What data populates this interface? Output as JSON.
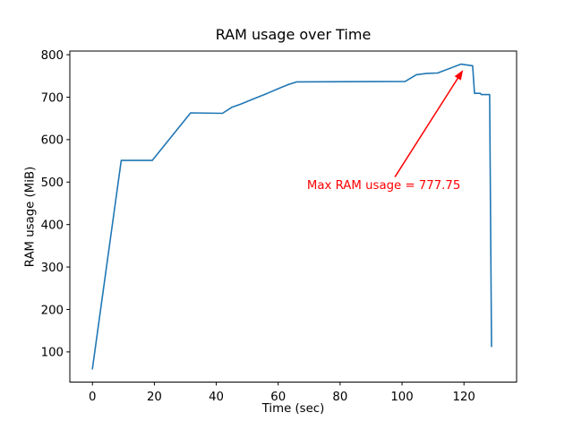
{
  "figure": {
    "background": "#ffffff",
    "text_color": "#000000"
  },
  "chart_data": {
    "type": "line",
    "title": "RAM usage over Time",
    "xlabel": "Time (sec)",
    "ylabel": "RAM usage (MiB)",
    "xlim": [
      -7.3,
      137.0
    ],
    "ylim": [
      29,
      808.6
    ],
    "x_ticks": [
      0,
      20,
      40,
      60,
      80,
      100,
      120
    ],
    "y_ticks": [
      100,
      200,
      300,
      400,
      500,
      600,
      700,
      800
    ],
    "grid": false,
    "legend": null,
    "line_color": "#1f77b4",
    "series": [
      {
        "points": [
          [
            0,
            60
          ],
          [
            9.3,
            551
          ],
          [
            19.3,
            551
          ],
          [
            31.7,
            663
          ],
          [
            42,
            662
          ],
          [
            45,
            676
          ],
          [
            48,
            684
          ],
          [
            52,
            696
          ],
          [
            56.5,
            709
          ],
          [
            60,
            720
          ],
          [
            63,
            729
          ],
          [
            66,
            736
          ],
          [
            101,
            737
          ],
          [
            104.6,
            753
          ],
          [
            108,
            756
          ],
          [
            111.5,
            757
          ],
          [
            119,
            777.75
          ],
          [
            122.8,
            774
          ],
          [
            123.4,
            709
          ],
          [
            125.3,
            709
          ],
          [
            125.6,
            706
          ],
          [
            128.3,
            706
          ],
          [
            128.9,
            113
          ]
        ]
      }
    ],
    "max_value": 777.75,
    "annotation": {
      "text": "Max RAM usage = 777.75",
      "color": "#ff0000",
      "text_pos": [
        69.3,
        477
      ],
      "arrow_from": [
        97.7,
        512
      ],
      "arrow_to": [
        119.7,
        764
      ]
    }
  }
}
